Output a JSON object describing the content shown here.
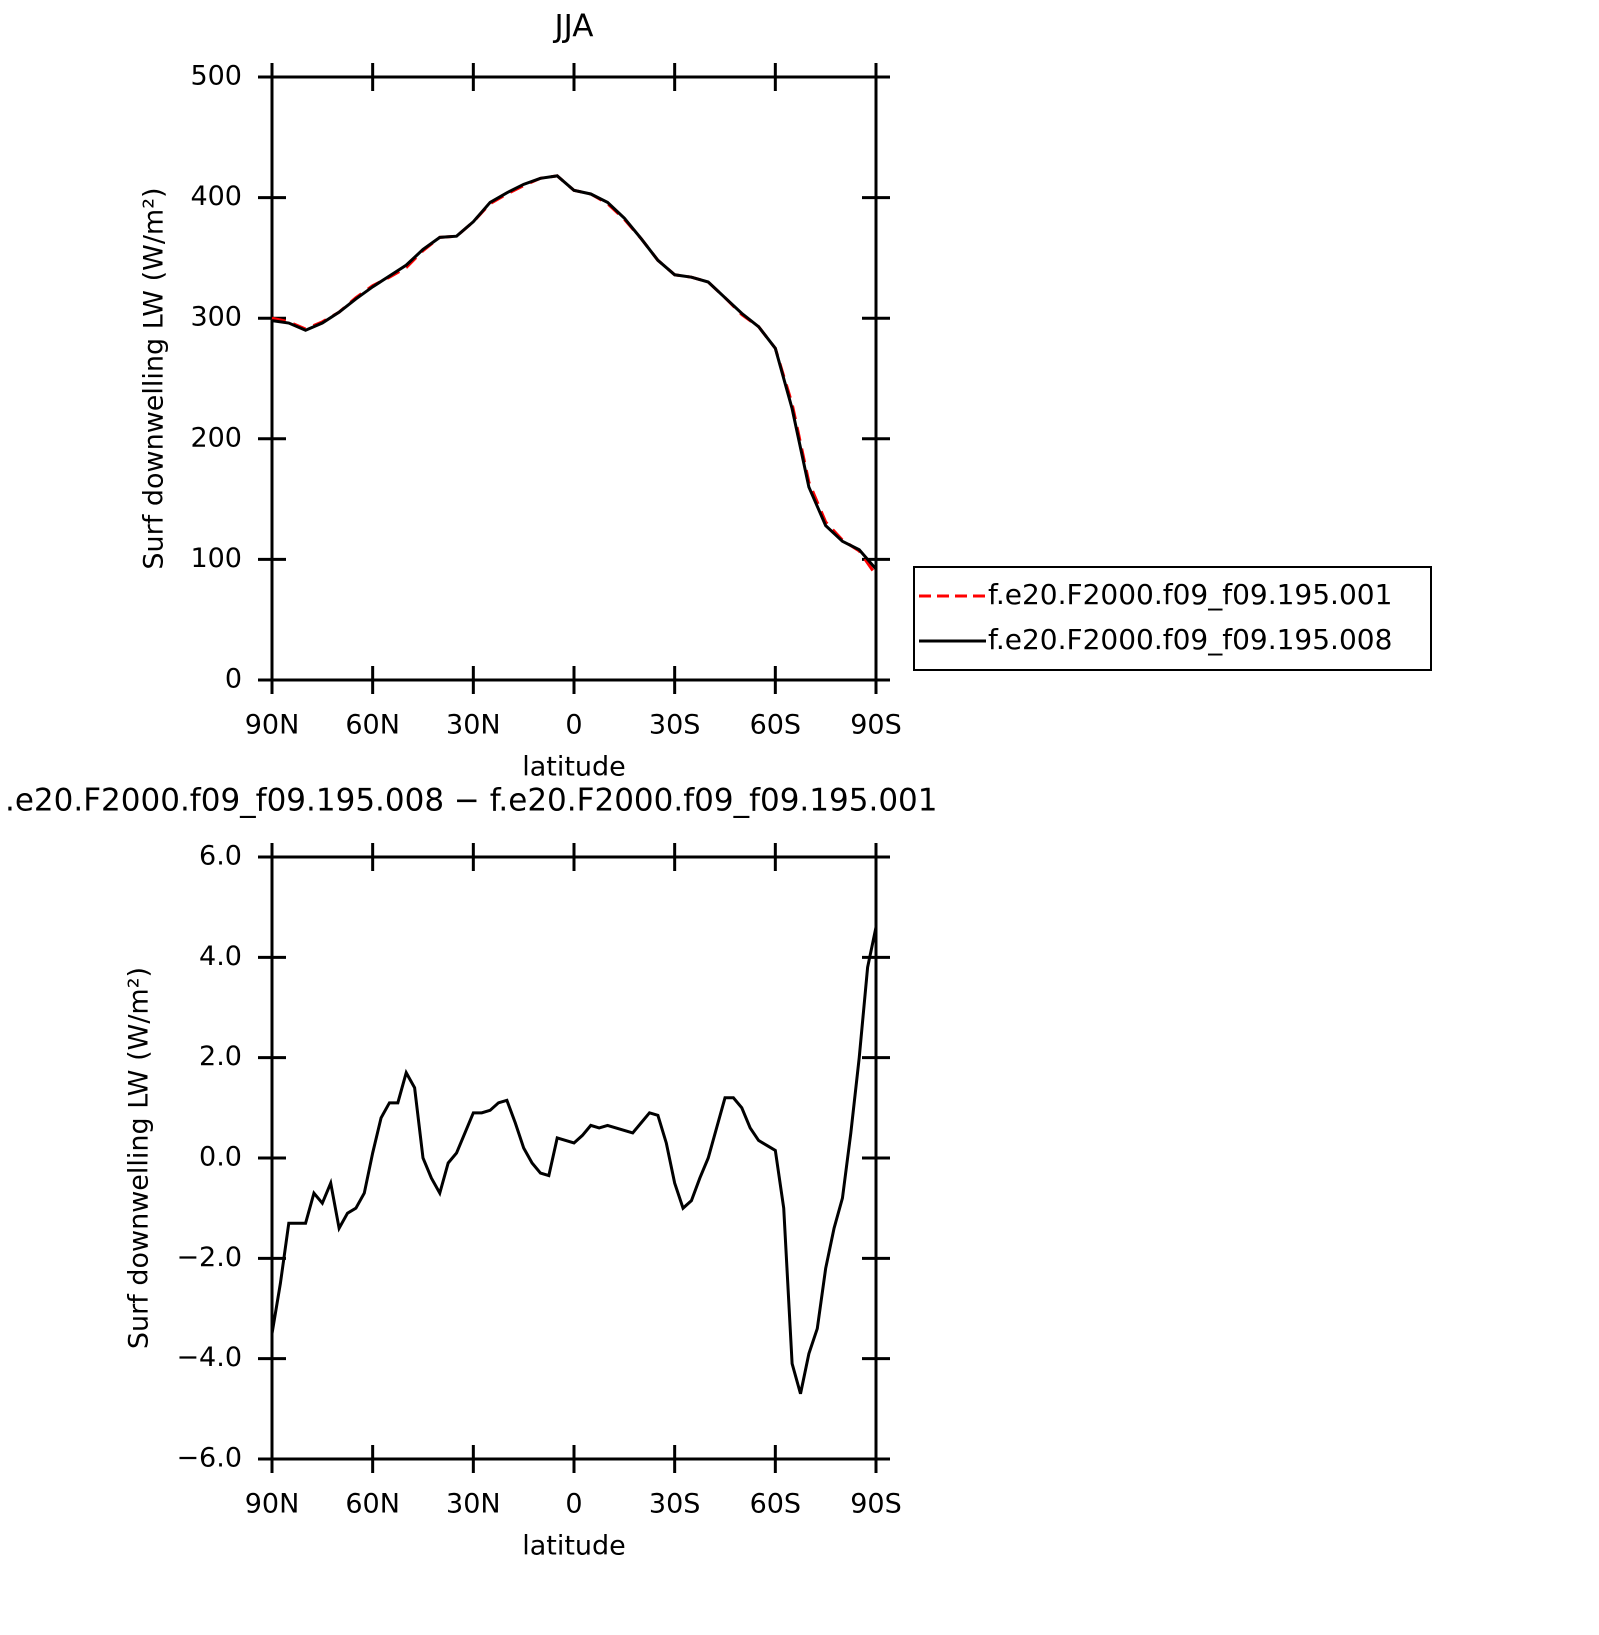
{
  "chart_data": [
    {
      "type": "line",
      "title": "JJA",
      "xlabel": "latitude",
      "ylabel": "Surf downwelling LW (W/m²)",
      "x": [
        90,
        85,
        80,
        75,
        70,
        65,
        60,
        55,
        50,
        45,
        40,
        35,
        30,
        25,
        20,
        15,
        10,
        5,
        0,
        -5,
        -10,
        -15,
        -20,
        -25,
        -30,
        -35,
        -40,
        -45,
        -50,
        -55,
        -60,
        -65,
        -70,
        -75,
        -80,
        -85,
        -90
      ],
      "xlim": [
        90,
        -90
      ],
      "xticks": [
        {
          "value": 90,
          "label": "90N"
        },
        {
          "value": 60,
          "label": "60N"
        },
        {
          "value": 30,
          "label": "30N"
        },
        0,
        {
          "value": -30,
          "label": "30S"
        },
        {
          "value": -60,
          "label": "60S"
        },
        {
          "value": -90,
          "label": "90S"
        }
      ],
      "ylim": [
        0,
        500
      ],
      "yticks": [
        0,
        100,
        200,
        300,
        400,
        500
      ],
      "legend": "right",
      "series": [
        {
          "name": "f.e20.F2000.f09_f09.195.001",
          "color": "#ff0000",
          "linestyle": "dashed",
          "values": [
            300,
            297,
            291,
            297,
            305,
            317,
            327,
            334,
            342,
            356,
            367,
            368,
            380,
            395,
            403,
            410,
            416,
            418,
            406,
            403,
            395,
            382,
            366,
            348,
            336,
            334,
            330,
            317,
            303,
            293,
            275,
            229,
            164,
            131,
            116,
            107,
            87
          ]
        },
        {
          "name": "f.e20.F2000.f09_f09.195.008",
          "color": "#000000",
          "linestyle": "solid",
          "values": [
            298,
            296,
            290,
            296,
            305,
            316,
            326,
            335,
            344,
            357,
            367,
            368,
            380,
            396,
            404,
            411,
            416,
            418,
            406,
            403,
            396,
            383,
            366,
            348,
            336,
            334,
            330,
            317,
            304,
            293,
            275,
            225,
            160,
            128,
            115,
            108,
            92
          ]
        }
      ]
    },
    {
      "type": "line",
      "title": ".e20.F2000.f09_f09.195.008 − f.e20.F2000.f09_f09.195.001",
      "xlabel": "latitude",
      "ylabel": "Surf downwelling LW (W/m²)",
      "x": [
        90,
        87.5,
        85,
        82.5,
        80,
        77.5,
        75,
        72.5,
        70,
        67.5,
        65,
        62.5,
        60,
        57.5,
        55,
        52.5,
        50,
        47.5,
        45,
        42.5,
        40,
        37.5,
        35,
        32.5,
        30,
        27.5,
        25,
        22.5,
        20,
        17.5,
        15,
        12.5,
        10,
        7.5,
        5,
        2.5,
        0,
        -2.5,
        -5,
        -7.5,
        -10,
        -12.5,
        -15,
        -17.5,
        -20,
        -22.5,
        -25,
        -27.5,
        -30,
        -32.5,
        -35,
        -37.5,
        -40,
        -42.5,
        -45,
        -47.5,
        -50,
        -52.5,
        -55,
        -57.5,
        -60,
        -62.5,
        -65,
        -67.5,
        -70,
        -72.5,
        -75,
        -77.5,
        -80,
        -82.5,
        -85,
        -87.5,
        -90
      ],
      "xlim": [
        90,
        -90
      ],
      "xticks": [
        {
          "value": 90,
          "label": "90N"
        },
        {
          "value": 60,
          "label": "60N"
        },
        {
          "value": 30,
          "label": "30N"
        },
        0,
        {
          "value": -30,
          "label": "30S"
        },
        {
          "value": -60,
          "label": "60S"
        },
        {
          "value": -90,
          "label": "90S"
        }
      ],
      "ylim": [
        -6,
        6
      ],
      "yticks": [
        {
          "value": -6,
          "label": "−6.0"
        },
        {
          "value": -4,
          "label": "−4.0"
        },
        {
          "value": -2,
          "label": "−2.0"
        },
        {
          "value": 0,
          "label": "0.0"
        },
        {
          "value": 2,
          "label": "2.0"
        },
        {
          "value": 4,
          "label": "4.0"
        },
        {
          "value": 6,
          "label": "6.0"
        }
      ],
      "color": "#000000",
      "values": [
        -3.5,
        -2.5,
        -1.3,
        -1.3,
        -1.3,
        -0.7,
        -0.9,
        -0.5,
        -1.4,
        -1.1,
        -1.0,
        -0.7,
        0.1,
        0.8,
        1.1,
        1.1,
        1.7,
        1.4,
        0.0,
        -0.4,
        -0.7,
        -0.1,
        0.1,
        0.5,
        0.9,
        0.9,
        0.95,
        1.1,
        1.15,
        0.7,
        0.2,
        -0.1,
        -0.3,
        -0.35,
        0.4,
        0.35,
        0.3,
        0.45,
        0.65,
        0.6,
        0.65,
        0.6,
        0.55,
        0.5,
        0.7,
        0.9,
        0.85,
        0.3,
        -0.5,
        -1.0,
        -0.85,
        -0.4,
        0.0,
        0.6,
        1.2,
        1.2,
        1.0,
        0.6,
        0.35,
        0.25,
        0.15,
        -1.0,
        -4.1,
        -4.7,
        -3.9,
        -3.4,
        -2.2,
        -1.4,
        -0.8,
        0.5,
        2.0,
        3.8,
        4.6
      ]
    }
  ]
}
